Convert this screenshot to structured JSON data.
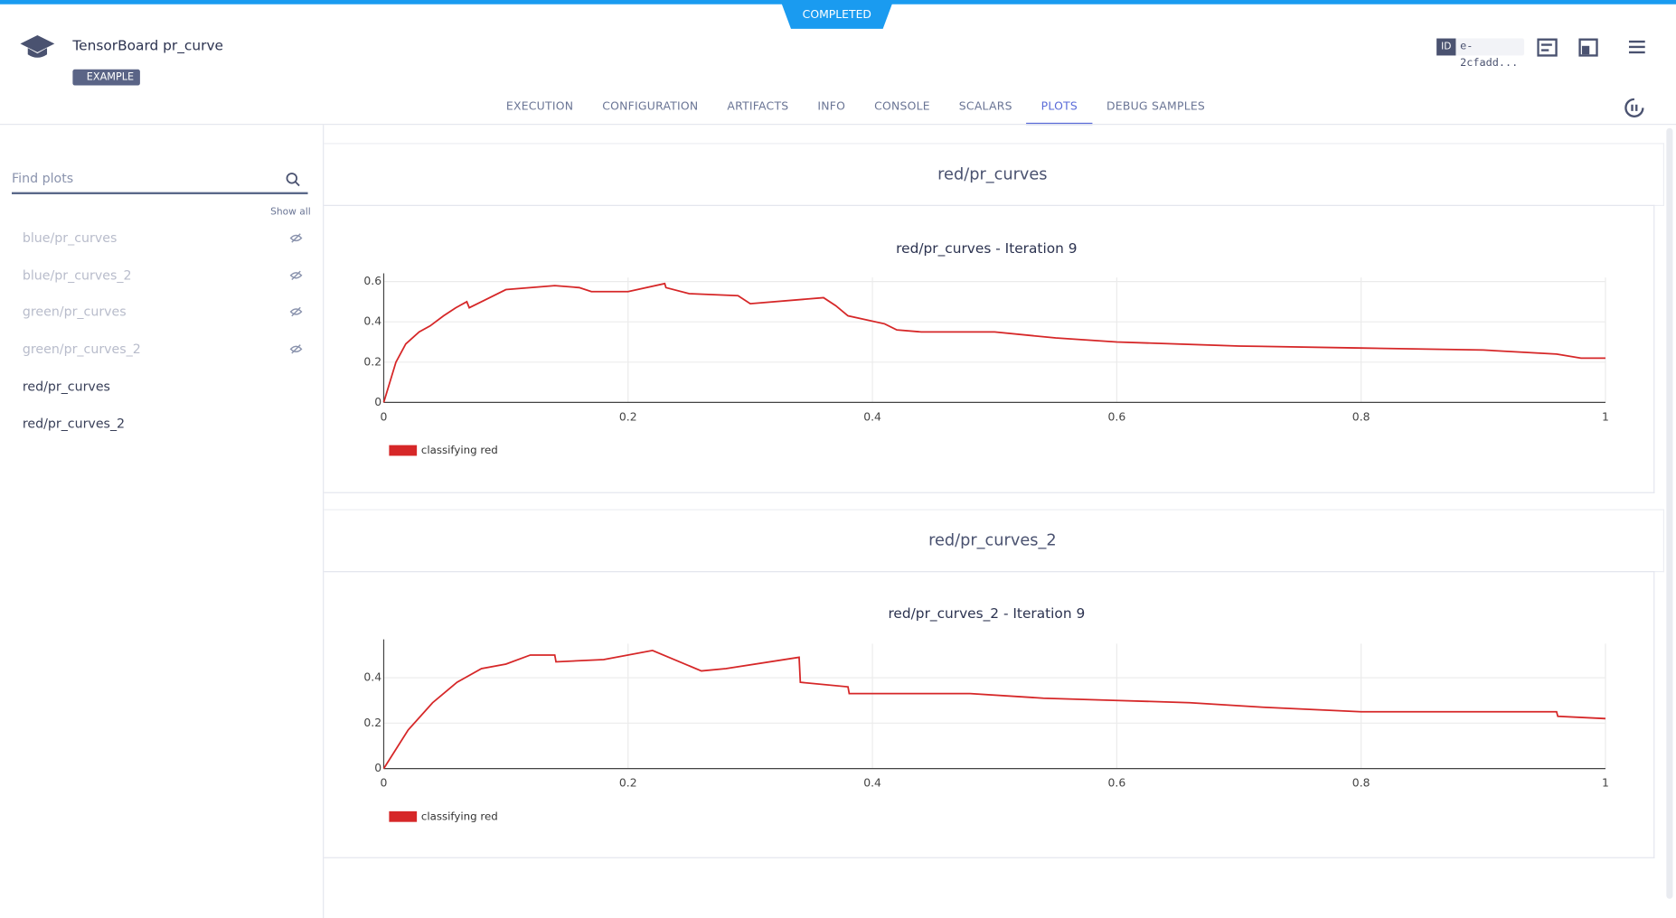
{
  "header": {
    "status": "COMPLETED",
    "title": "TensorBoard pr_curve",
    "tag": "EXAMPLE",
    "id_label": "ID",
    "id": "e-2cfadd..."
  },
  "tabs": [
    "EXECUTION",
    "CONFIGURATION",
    "ARTIFACTS",
    "INFO",
    "CONSOLE",
    "SCALARS",
    "PLOTS",
    "DEBUG SAMPLES"
  ],
  "active_tab": 6,
  "sidebar": {
    "search_placeholder": "Find plots",
    "show_all": "Show all",
    "items": [
      {
        "label": "blue/pr_curves",
        "hidden": true
      },
      {
        "label": "blue/pr_curves_2",
        "hidden": true
      },
      {
        "label": "green/pr_curves",
        "hidden": true
      },
      {
        "label": "green/pr_curves_2",
        "hidden": true
      },
      {
        "label": "red/pr_curves",
        "hidden": false
      },
      {
        "label": "red/pr_curves_2",
        "hidden": false
      }
    ]
  },
  "panels": [
    {
      "title": "red/pr_curves"
    },
    {
      "title": "red/pr_curves_2"
    }
  ],
  "chart_data": [
    {
      "type": "line",
      "title": "red/pr_curves - Iteration 9",
      "xlim": [
        0,
        1
      ],
      "ylim": [
        0,
        0.62
      ],
      "xticks": [
        0,
        0.2,
        0.4,
        0.6,
        0.8,
        1
      ],
      "yticks": [
        0,
        0.2,
        0.4,
        0.6
      ],
      "grid": true,
      "series": [
        {
          "name": "classifying red",
          "color": "#d62728",
          "x": [
            0,
            0.01,
            0.018,
            0.029,
            0.038,
            0.049,
            0.059,
            0.068,
            0.07,
            0.08,
            0.1,
            0.14,
            0.16,
            0.17,
            0.2,
            0.23,
            0.231,
            0.25,
            0.29,
            0.3,
            0.36,
            0.37,
            0.38,
            0.41,
            0.42,
            0.44,
            0.5,
            0.55,
            0.6,
            0.7,
            0.8,
            0.9,
            0.96,
            0.98,
            1
          ],
          "values": [
            0,
            0.2,
            0.29,
            0.35,
            0.38,
            0.43,
            0.47,
            0.5,
            0.47,
            0.5,
            0.56,
            0.58,
            0.57,
            0.55,
            0.55,
            0.59,
            0.57,
            0.54,
            0.53,
            0.49,
            0.52,
            0.48,
            0.43,
            0.39,
            0.36,
            0.35,
            0.35,
            0.32,
            0.3,
            0.28,
            0.27,
            0.26,
            0.24,
            0.22,
            0.22
          ]
        }
      ]
    },
    {
      "type": "line",
      "title": "red/pr_curves_2 - Iteration 9",
      "xlim": [
        0,
        1
      ],
      "ylim": [
        0,
        0.55
      ],
      "xticks": [
        0,
        0.2,
        0.4,
        0.6,
        0.8,
        1
      ],
      "yticks": [
        0,
        0.2,
        0.4
      ],
      "grid": true,
      "series": [
        {
          "name": "classifying red",
          "color": "#d62728",
          "x": [
            0,
            0.02,
            0.04,
            0.06,
            0.08,
            0.1,
            0.12,
            0.14,
            0.141,
            0.18,
            0.22,
            0.26,
            0.28,
            0.34,
            0.341,
            0.38,
            0.381,
            0.42,
            0.48,
            0.54,
            0.6,
            0.66,
            0.72,
            0.8,
            0.96,
            0.961,
            1
          ],
          "values": [
            0,
            0.17,
            0.29,
            0.38,
            0.44,
            0.46,
            0.5,
            0.5,
            0.47,
            0.48,
            0.52,
            0.43,
            0.44,
            0.49,
            0.38,
            0.36,
            0.33,
            0.33,
            0.33,
            0.31,
            0.3,
            0.29,
            0.27,
            0.25,
            0.25,
            0.23,
            0.22
          ]
        }
      ]
    }
  ]
}
